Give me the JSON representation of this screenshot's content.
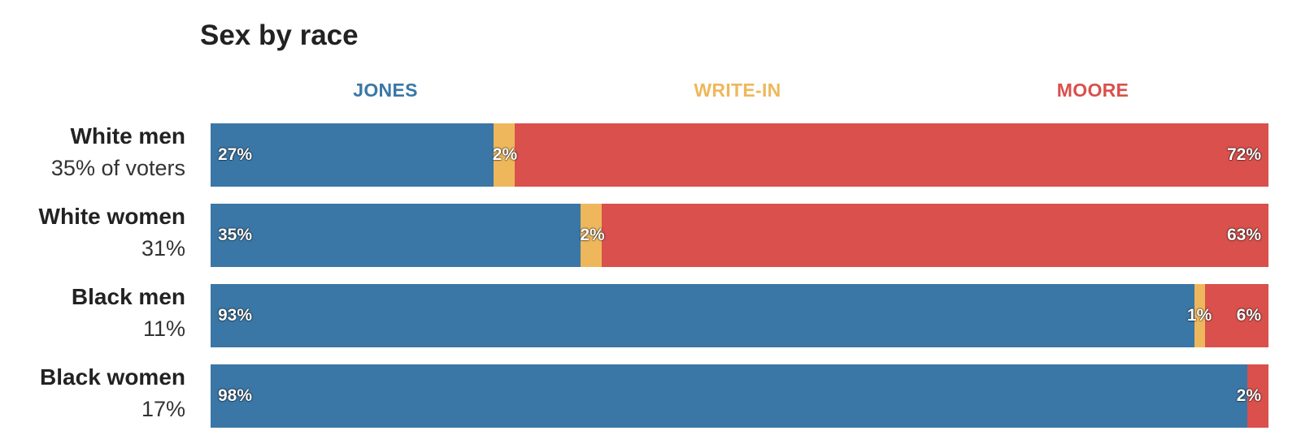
{
  "chart_data": {
    "type": "bar",
    "orientation": "horizontal",
    "stacked": true,
    "title": "Sex by race",
    "series": [
      {
        "name": "JONES",
        "color": "#3a77a6"
      },
      {
        "name": "WRITE-IN",
        "color": "#efb75b"
      },
      {
        "name": "MOORE",
        "color": "#d9504c"
      }
    ],
    "rows": [
      {
        "group": "White men",
        "share": "35% of voters",
        "values": [
          27,
          2,
          72
        ],
        "labels": [
          "27%",
          "2%",
          "72%"
        ]
      },
      {
        "group": "White women",
        "share": "31%",
        "values": [
          35,
          2,
          63
        ],
        "labels": [
          "35%",
          "2%",
          "63%"
        ]
      },
      {
        "group": "Black men",
        "share": "11%",
        "values": [
          93,
          1,
          6
        ],
        "labels": [
          "93%",
          "1%",
          "6%"
        ]
      },
      {
        "group": "Black women",
        "share": "17%",
        "values": [
          98,
          0,
          2
        ],
        "labels": [
          "98%",
          "",
          "2%"
        ]
      }
    ]
  }
}
